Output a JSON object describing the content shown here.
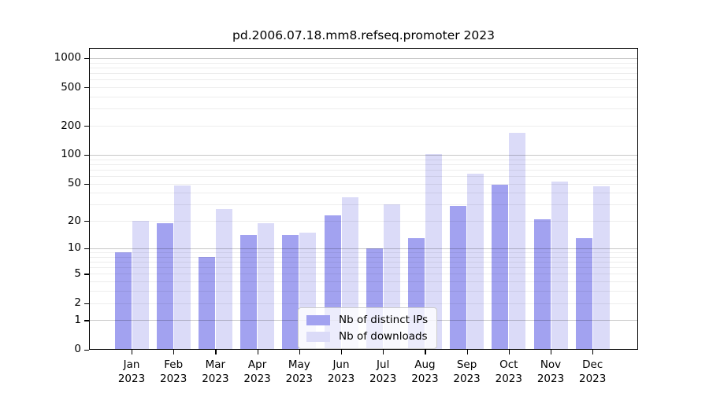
{
  "title": "pd.2006.07.18.mm8.refseq.promoter 2023",
  "colors": {
    "ips_bar": "#a2a2f0",
    "downloads_bar": "#dbdbf8",
    "axis": "#000000",
    "background": "#ffffff"
  },
  "legend": {
    "items": [
      {
        "label": "Nb of distinct IPs",
        "series": "ips"
      },
      {
        "label": "Nb of downloads",
        "series": "downloads"
      }
    ]
  },
  "x_axis": {
    "year": "2023",
    "months": [
      "Jan",
      "Feb",
      "Mar",
      "Apr",
      "May",
      "Jun",
      "Jul",
      "Aug",
      "Sep",
      "Oct",
      "Nov",
      "Dec"
    ]
  },
  "y_axis": {
    "tick_labels": [
      "0",
      "1",
      "2",
      "5",
      "10",
      "20",
      "50",
      "100",
      "200",
      "500",
      "1000"
    ]
  },
  "chart_data": {
    "type": "bar",
    "title": "pd.2006.07.18.mm8.refseq.promoter 2023",
    "categories": [
      "Jan 2023",
      "Feb 2023",
      "Mar 2023",
      "Apr 2023",
      "May 2023",
      "Jun 2023",
      "Jul 2023",
      "Aug 2023",
      "Sep 2023",
      "Oct 2023",
      "Nov 2023",
      "Dec 2023"
    ],
    "series": [
      {
        "name": "Nb of distinct IPs",
        "color": "#a2a2f0",
        "values": [
          9,
          19,
          8,
          14,
          14,
          23,
          10,
          13,
          29,
          49,
          21,
          13
        ]
      },
      {
        "name": "Nb of downloads",
        "color": "#dbdbf8",
        "values": [
          20,
          48,
          27,
          19,
          15,
          36,
          30,
          101,
          64,
          170,
          53,
          47
        ]
      }
    ],
    "yscale": "log1p",
    "yticks": [
      0,
      1,
      2,
      5,
      10,
      20,
      50,
      100,
      200,
      500,
      1000
    ],
    "ylim": [
      0,
      1000
    ],
    "xlabel": "",
    "ylabel": "",
    "grid": true,
    "grid_over_bars": true,
    "legend_position": "lower center"
  }
}
